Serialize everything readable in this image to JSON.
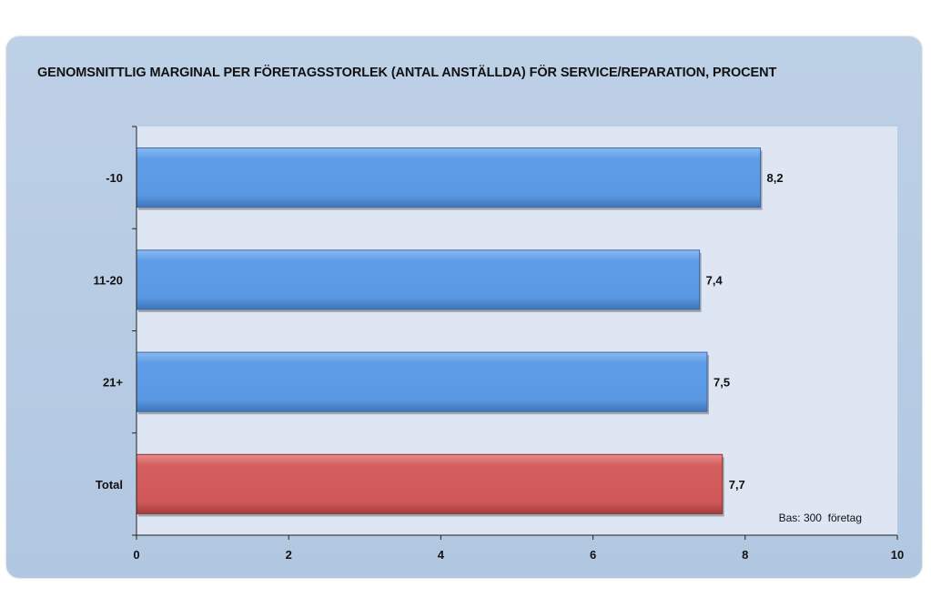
{
  "chart_data": {
    "type": "bar",
    "orientation": "horizontal",
    "title": "GENOMSNITTLIG MARGINAL PER FÖRETAGSSTORLEK (ANTAL ANSTÄLLDA) FÖR SERVICE/REPARATION, PROCENT",
    "categories": [
      "-10",
      "11-20",
      "21+",
      "Total"
    ],
    "values": [
      8.2,
      7.4,
      7.5,
      7.7
    ],
    "value_labels": [
      "8,2",
      "7,4",
      "7,5",
      "7,7"
    ],
    "bar_colors": [
      "#5b9be6",
      "#5b9be6",
      "#5b9be6",
      "#d05a5a"
    ],
    "xlim": [
      0,
      10
    ],
    "x_ticks": [
      0,
      2,
      4,
      6,
      8,
      10
    ],
    "x_tick_labels": [
      "0",
      "2",
      "4",
      "6",
      "8",
      "10"
    ],
    "xlabel": "",
    "ylabel": "",
    "grid": false,
    "legend": "none",
    "annotation": "Bas: 300  företag"
  }
}
